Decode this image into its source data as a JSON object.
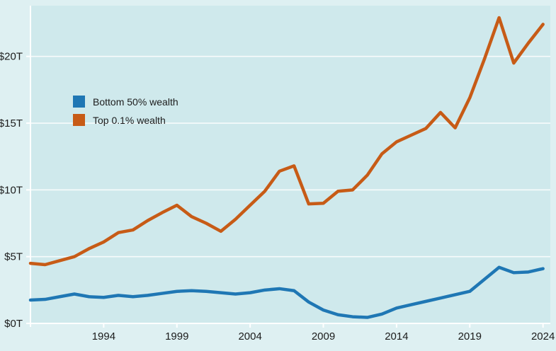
{
  "chart_data": {
    "type": "line",
    "title": "",
    "xlabel": "",
    "ylabel": "",
    "x": [
      1989,
      1990,
      1991,
      1992,
      1993,
      1994,
      1995,
      1996,
      1997,
      1998,
      1999,
      2000,
      2001,
      2002,
      2003,
      2004,
      2005,
      2006,
      2007,
      2008,
      2009,
      2010,
      2011,
      2012,
      2013,
      2014,
      2015,
      2016,
      2017,
      2018,
      2019,
      2020,
      2021,
      2022,
      2023,
      2024
    ],
    "series": [
      {
        "name": "Bottom 50% wealth",
        "color": "#1f77b4",
        "values": [
          1.75,
          1.8,
          2.0,
          2.2,
          2.0,
          1.95,
          2.1,
          2.0,
          2.1,
          2.25,
          2.4,
          2.45,
          2.4,
          2.3,
          2.2,
          2.3,
          2.5,
          2.6,
          2.45,
          1.6,
          1.0,
          0.65,
          0.5,
          0.45,
          0.7,
          1.15,
          1.4,
          1.65,
          1.9,
          2.15,
          2.4,
          3.3,
          4.2,
          3.8,
          3.85,
          4.1
        ]
      },
      {
        "name": "Top 0.1% wealth",
        "color": "#c75b16",
        "values": [
          4.5,
          4.4,
          4.7,
          5.0,
          5.6,
          6.1,
          6.8,
          7.0,
          7.7,
          8.3,
          8.85,
          8.0,
          7.5,
          6.9,
          7.8,
          8.85,
          9.9,
          11.4,
          11.8,
          8.95,
          9.0,
          9.9,
          10.0,
          11.1,
          12.7,
          13.6,
          14.1,
          14.6,
          15.8,
          14.65,
          16.9,
          19.8,
          22.9,
          19.5,
          21.0,
          22.4
        ]
      }
    ],
    "x_ticks": {
      "values": [
        1994,
        1999,
        2004,
        2009,
        2014,
        2019,
        2024
      ],
      "labels": [
        "1994",
        "1999",
        "2004",
        "2009",
        "2014",
        "2019",
        "2024"
      ]
    },
    "y_ticks": {
      "values": [
        0,
        5,
        10,
        15,
        20
      ],
      "labels": [
        "$0T",
        "$5T",
        "$10T",
        "$15T",
        "$20T"
      ]
    },
    "xlim": [
      1989,
      2024.5
    ],
    "ylim": [
      0,
      23.8
    ],
    "grid": true,
    "legend_position": "upper-left-inside"
  },
  "legend": {
    "items": [
      {
        "label": "Bottom 50% wealth",
        "color": "#1f77b4"
      },
      {
        "label": "Top 0.1% wealth",
        "color": "#c75b16"
      }
    ]
  },
  "style": {
    "figure_background": "#def0f2",
    "plot_background": "#cfe9ec",
    "gridline_color": "#ffffff",
    "axis_color": "#ffffff",
    "text_color": "#1c1c1c"
  }
}
